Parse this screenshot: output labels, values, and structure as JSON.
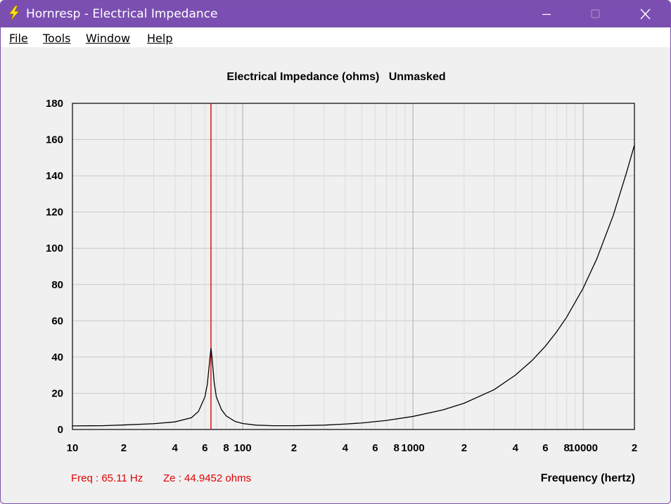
{
  "window": {
    "title": "Hornresp - Electrical Impedance",
    "icon": "lightning-icon"
  },
  "menu": [
    {
      "label": "File"
    },
    {
      "label": "Tools"
    },
    {
      "label": "Window"
    },
    {
      "label": "Help"
    }
  ],
  "readout": {
    "freq": "Freq : 65.11 Hz",
    "ze": "Ze : 44.9452 ohms"
  },
  "colors": {
    "titlebar": "#7b4fb1",
    "curve": "#000000",
    "marker": "#e00000",
    "grid": "#c8c8c8",
    "readout": "#e00000"
  },
  "chart_data": {
    "type": "line",
    "title": "Electrical Impedance (ohms)   Unmasked",
    "xlabel": "Frequency (hertz)",
    "ylabel": "",
    "xscale": "log",
    "xlim": [
      10,
      20000
    ],
    "ylim": [
      0,
      180
    ],
    "grid": true,
    "y_ticks": [
      0,
      20,
      40,
      60,
      80,
      100,
      120,
      140,
      160,
      180
    ],
    "x_ticks": [
      {
        "value": 10,
        "label": "10"
      },
      {
        "value": 20,
        "label": "2"
      },
      {
        "value": 40,
        "label": "4"
      },
      {
        "value": 60,
        "label": "6"
      },
      {
        "value": 80,
        "label": "8"
      },
      {
        "value": 100,
        "label": "100"
      },
      {
        "value": 200,
        "label": "2"
      },
      {
        "value": 400,
        "label": "4"
      },
      {
        "value": 600,
        "label": "6"
      },
      {
        "value": 800,
        "label": "8"
      },
      {
        "value": 1000,
        "label": "1000"
      },
      {
        "value": 2000,
        "label": "2"
      },
      {
        "value": 4000,
        "label": "4"
      },
      {
        "value": 6000,
        "label": "6"
      },
      {
        "value": 8000,
        "label": "8"
      },
      {
        "value": 10000,
        "label": "10000"
      },
      {
        "value": 20000,
        "label": "2"
      }
    ],
    "marker_x": 65.11,
    "series": [
      {
        "x": [
          10,
          15,
          20,
          30,
          40,
          50,
          55,
          60,
          62,
          64,
          65.11,
          66,
          68,
          70,
          75,
          80,
          90,
          100,
          120,
          150,
          200,
          300,
          400,
          500,
          700,
          1000,
          1500,
          2000,
          3000,
          4000,
          5000,
          6000,
          7000,
          8000,
          10000,
          12000,
          15000,
          18000,
          20000
        ],
        "y": [
          2,
          2.1,
          2.5,
          3.2,
          4.2,
          6.5,
          10,
          18,
          25,
          38,
          44.9,
          40,
          26,
          18,
          11,
          7.5,
          4.5,
          3.3,
          2.4,
          2.1,
          2.1,
          2.4,
          3,
          3.6,
          5,
          7.2,
          10.8,
          14.5,
          22,
          30,
          38,
          46,
          54,
          62,
          78,
          94,
          118,
          142,
          157
        ]
      }
    ]
  }
}
